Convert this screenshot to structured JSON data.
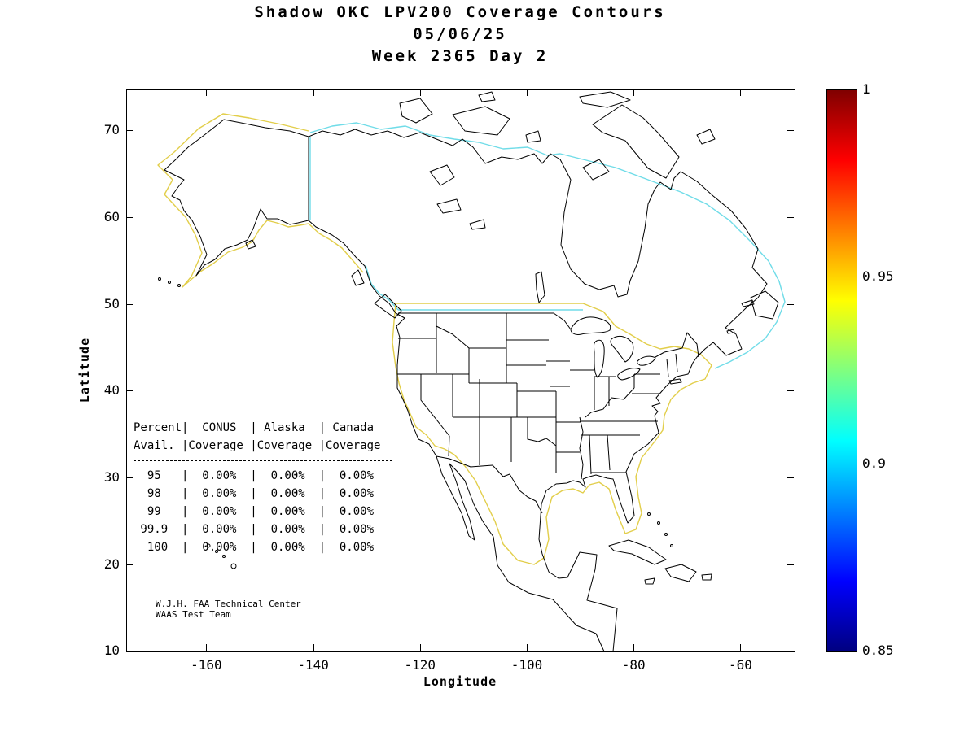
{
  "title": {
    "line1": "Shadow OKC LPV200 Coverage Contours",
    "line2": "05/06/25",
    "line3": "Week 2365 Day 2"
  },
  "axes": {
    "x": {
      "label": "Longitude",
      "ticks": [
        -160,
        -140,
        -120,
        -100,
        -80,
        -60
      ],
      "range": [
        -175,
        -50
      ]
    },
    "y": {
      "label": "Latitude",
      "ticks": [
        70,
        60,
        50,
        40,
        30,
        20,
        10
      ],
      "range": [
        10,
        74.7
      ]
    }
  },
  "colorbar": {
    "ticks": [
      "1",
      "0.95",
      "0.9",
      "0.85"
    ],
    "tick_values": [
      1,
      0.95,
      0.9,
      0.85
    ],
    "range": [
      0.85,
      1
    ],
    "colormap": "jet"
  },
  "coverage_table": {
    "col_headers_line1": [
      "Percent",
      "CONUS",
      "Alaska",
      "Canada"
    ],
    "col_headers_line2": [
      "Avail.",
      "Coverage",
      "Coverage",
      "Coverage"
    ],
    "rows": [
      {
        "percent": "95",
        "conus": "0.00%",
        "alaska": "0.00%",
        "canada": "0.00%"
      },
      {
        "percent": "98",
        "conus": "0.00%",
        "alaska": "0.00%",
        "canada": "0.00%"
      },
      {
        "percent": "99",
        "conus": "0.00%",
        "alaska": "0.00%",
        "canada": "0.00%"
      },
      {
        "percent": "99.9",
        "conus": "0.00%",
        "alaska": "0.00%",
        "canada": "0.00%"
      },
      {
        "percent": "100",
        "conus": "0.00%",
        "alaska": "0.00%",
        "canada": "0.00%"
      }
    ]
  },
  "credit": {
    "line1": "W.J.H. FAA Technical Center",
    "line2": "WAAS Test Team"
  },
  "contour_colors": {
    "conus_alaska": "#e2ce4a",
    "canada": "#70dce8",
    "coast": "#000000"
  },
  "chart_data": {
    "type": "table",
    "title": "Shadow OKC LPV200 Coverage Contours",
    "subtitle": [
      "05/06/25",
      "Week 2365 Day 2"
    ],
    "xlabel": "Longitude",
    "ylabel": "Latitude",
    "xlim": [
      -175,
      -50
    ],
    "ylim": [
      10,
      75
    ],
    "x_ticks": [
      -160,
      -140,
      -120,
      -100,
      -80,
      -60
    ],
    "y_ticks": [
      70,
      60,
      50,
      40,
      30,
      20,
      10
    ],
    "colorbar": {
      "min": 0.85,
      "max": 1,
      "ticks": [
        1,
        0.95,
        0.9,
        0.85
      ],
      "colormap": "jet"
    },
    "contours": [
      {
        "color": "#e2ce4a",
        "approx_level": 0.95,
        "region": "CONUS and Alaska boundary"
      },
      {
        "color": "#70dce8",
        "approx_level": 0.9,
        "region": "Canada / northern boundary"
      }
    ],
    "columns": [
      "Percent Avail.",
      "CONUS Coverage",
      "Alaska Coverage",
      "Canada Coverage"
    ],
    "rows": [
      [
        "95",
        "0.00%",
        "0.00%",
        "0.00%"
      ],
      [
        "98",
        "0.00%",
        "0.00%",
        "0.00%"
      ],
      [
        "99",
        "0.00%",
        "0.00%",
        "0.00%"
      ],
      [
        "99.9",
        "0.00%",
        "0.00%",
        "0.00%"
      ],
      [
        "100",
        "0.00%",
        "0.00%",
        "0.00%"
      ]
    ]
  }
}
